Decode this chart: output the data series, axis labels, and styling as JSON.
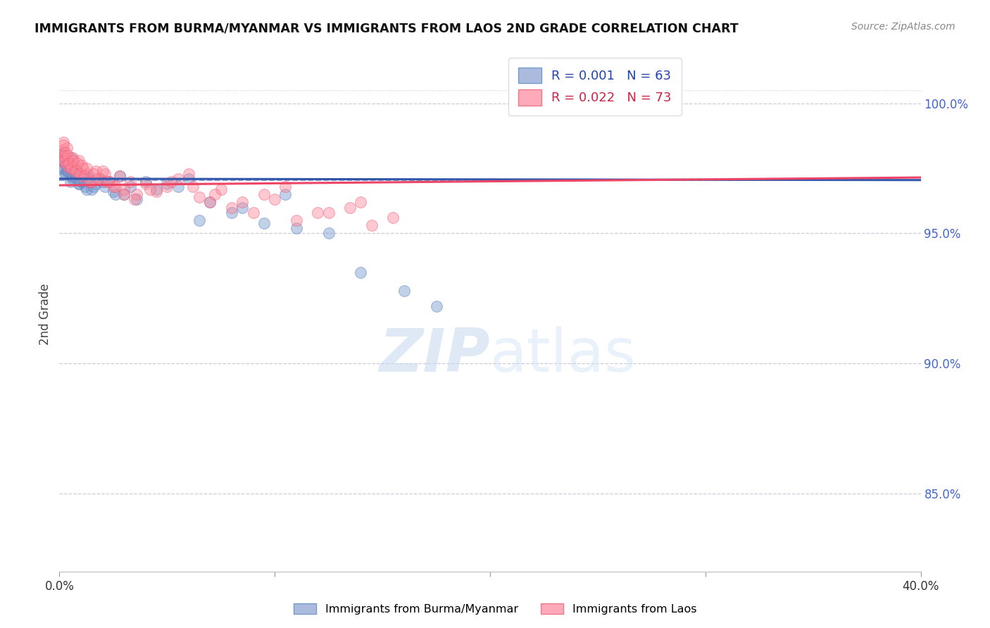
{
  "title": "IMMIGRANTS FROM BURMA/MYANMAR VS IMMIGRANTS FROM LAOS 2ND GRADE CORRELATION CHART",
  "source": "Source: ZipAtlas.com",
  "ylabel": "2nd Grade",
  "legend_blue": "R = 0.001   N = 63",
  "legend_pink": "R = 0.022   N = 73",
  "bottom_legend_blue": "Immigrants from Burma/Myanmar",
  "bottom_legend_pink": "Immigrants from Laos",
  "ytick_labels": [
    "85.0%",
    "90.0%",
    "95.0%",
    "100.0%"
  ],
  "ytick_values": [
    85.0,
    90.0,
    95.0,
    100.0
  ],
  "xtick_labels": [
    "0.0%",
    "",
    "",
    "",
    "40.0%"
  ],
  "xtick_values": [
    0.0,
    10.0,
    20.0,
    30.0,
    40.0
  ],
  "xlim": [
    0.0,
    40.0
  ],
  "ylim": [
    82.0,
    101.8
  ],
  "watermark": "ZIPatlas",
  "blue_color": "#7799cc",
  "blue_edge": "#5577bb",
  "pink_color": "#ff8899",
  "pink_edge": "#ee5577",
  "blue_line_color": "#3355aa",
  "pink_line_color": "#ee4466",
  "blue_dash_color": "#7799cc",
  "grid_color": "#ccccdd",
  "right_axis_color": "#4466cc",
  "background_color": "#ffffff",
  "blue_x": [
    0.1,
    0.15,
    0.2,
    0.25,
    0.3,
    0.35,
    0.4,
    0.5,
    0.55,
    0.6,
    0.65,
    0.7,
    0.8,
    0.9,
    1.0,
    1.1,
    1.2,
    1.3,
    1.5,
    1.7,
    1.9,
    2.1,
    2.3,
    2.5,
    2.8,
    3.0,
    3.3,
    3.6,
    4.0,
    4.5,
    5.0,
    5.5,
    6.0,
    6.5,
    7.0,
    8.0,
    8.5,
    9.5,
    10.5,
    11.0,
    12.5,
    14.0,
    16.0,
    17.5,
    0.12,
    0.18,
    0.22,
    0.28,
    0.32,
    0.38,
    0.42,
    0.52,
    0.62,
    0.72,
    0.82,
    0.92,
    1.05,
    1.15,
    1.25,
    1.35,
    1.6,
    2.0,
    2.6
  ],
  "blue_y": [
    97.5,
    97.8,
    98.0,
    97.3,
    97.6,
    97.4,
    97.7,
    97.2,
    97.9,
    97.1,
    97.6,
    97.4,
    97.3,
    96.9,
    97.0,
    97.2,
    96.8,
    97.1,
    96.7,
    96.9,
    97.1,
    96.8,
    97.0,
    96.6,
    97.2,
    96.5,
    96.8,
    96.3,
    97.0,
    96.7,
    96.9,
    96.8,
    97.1,
    95.5,
    96.2,
    95.8,
    96.0,
    95.4,
    96.5,
    95.2,
    95.0,
    93.5,
    92.8,
    92.2,
    97.8,
    98.1,
    97.5,
    97.7,
    97.3,
    97.6,
    97.4,
    97.0,
    97.2,
    97.5,
    97.1,
    96.9,
    97.3,
    97.0,
    96.7,
    97.2,
    96.8,
    97.0,
    96.5
  ],
  "pink_x": [
    0.1,
    0.15,
    0.2,
    0.25,
    0.3,
    0.35,
    0.4,
    0.5,
    0.6,
    0.7,
    0.8,
    0.9,
    1.0,
    1.1,
    1.3,
    1.5,
    1.7,
    1.9,
    2.1,
    2.3,
    2.5,
    2.8,
    3.0,
    3.3,
    3.6,
    4.0,
    4.5,
    5.0,
    5.5,
    6.0,
    6.5,
    7.0,
    7.5,
    8.0,
    9.0,
    10.0,
    11.0,
    12.0,
    13.5,
    14.5,
    15.5,
    0.12,
    0.18,
    0.22,
    0.28,
    0.32,
    0.38,
    0.45,
    0.55,
    0.65,
    0.75,
    0.85,
    0.95,
    1.05,
    1.15,
    1.25,
    1.4,
    1.6,
    1.8,
    2.0,
    2.2,
    2.6,
    3.0,
    3.5,
    4.2,
    5.2,
    6.2,
    7.2,
    8.5,
    9.5,
    10.5,
    12.5,
    14.0
  ],
  "pink_y": [
    97.8,
    98.2,
    98.5,
    98.0,
    97.9,
    98.3,
    97.7,
    97.5,
    97.9,
    97.6,
    97.4,
    97.8,
    97.2,
    97.5,
    97.3,
    97.0,
    97.4,
    97.1,
    97.3,
    97.0,
    96.8,
    97.2,
    96.7,
    97.0,
    96.5,
    96.9,
    96.6,
    96.8,
    97.1,
    97.3,
    96.4,
    96.2,
    96.7,
    96.0,
    95.8,
    96.3,
    95.5,
    95.8,
    96.0,
    95.3,
    95.6,
    98.0,
    98.4,
    97.8,
    98.1,
    97.6,
    98.0,
    97.7,
    97.5,
    97.8,
    97.4,
    97.7,
    97.3,
    97.6,
    97.2,
    97.5,
    97.0,
    97.3,
    97.1,
    97.4,
    97.0,
    96.8,
    96.5,
    96.3,
    96.7,
    97.0,
    96.8,
    96.5,
    96.2,
    96.5,
    96.8,
    95.8,
    96.2
  ],
  "blue_trend_y0": 97.1,
  "blue_trend_y1": 97.05,
  "pink_trend_y0": 96.85,
  "pink_trend_y1": 97.15,
  "blue_dash_y": 97.05
}
